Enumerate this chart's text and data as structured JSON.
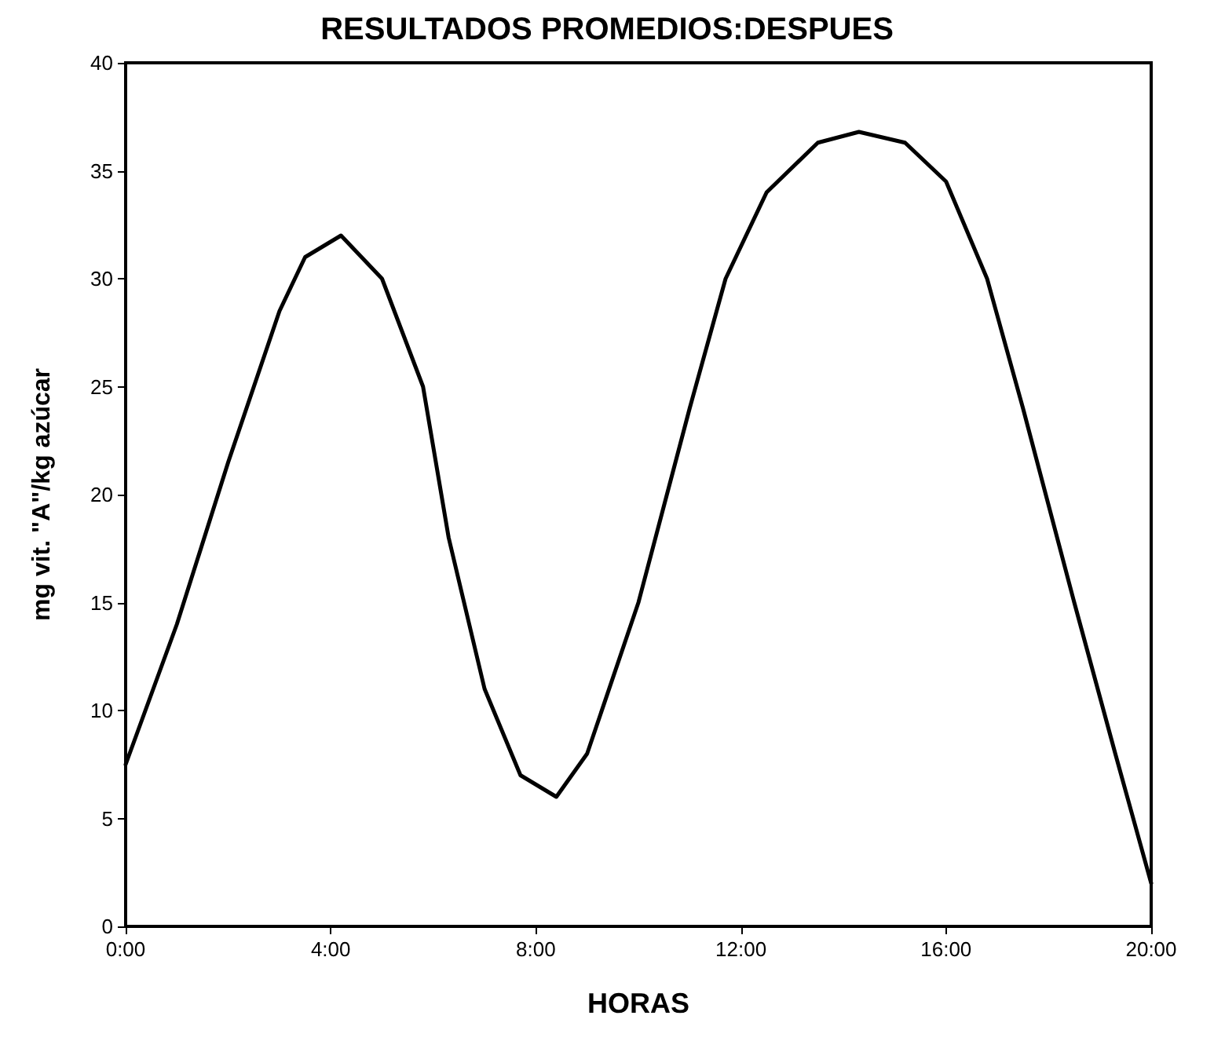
{
  "chart_data": {
    "type": "line",
    "title": "RESULTADOS PROMEDIOS:DESPUES",
    "xlabel": "HORAS",
    "ylabel": "mg vit. \"A\"/kg azúcar",
    "x": [
      0,
      1,
      2,
      3,
      3.5,
      4.2,
      5,
      5.8,
      6.3,
      7,
      7.7,
      8.4,
      9,
      10,
      11,
      11.7,
      12.5,
      13.5,
      14.3,
      15.2,
      16,
      16.8,
      17.5,
      18.5,
      19.3,
      20
    ],
    "series": [
      {
        "color": "#000000",
        "values": [
          7.5,
          14,
          21.5,
          28.5,
          31,
          32,
          30,
          25,
          18,
          11,
          7,
          6,
          8,
          15,
          24,
          30,
          34,
          36.3,
          36.8,
          36.3,
          34.5,
          30,
          24,
          15,
          8,
          2
        ]
      }
    ],
    "xlim": [
      0,
      20
    ],
    "xticks": [
      {
        "value": 0,
        "label": "0:00"
      },
      {
        "value": 4,
        "label": "4:00"
      },
      {
        "value": 8,
        "label": "8:00"
      },
      {
        "value": 12,
        "label": "12:00"
      },
      {
        "value": 16,
        "label": "16:00"
      },
      {
        "value": 20,
        "label": "20:00"
      }
    ],
    "ylim": [
      0,
      40
    ],
    "yticks": [
      0,
      5,
      10,
      15,
      20,
      25,
      30,
      35,
      40
    ],
    "marker": "none",
    "line_style": "solid"
  }
}
